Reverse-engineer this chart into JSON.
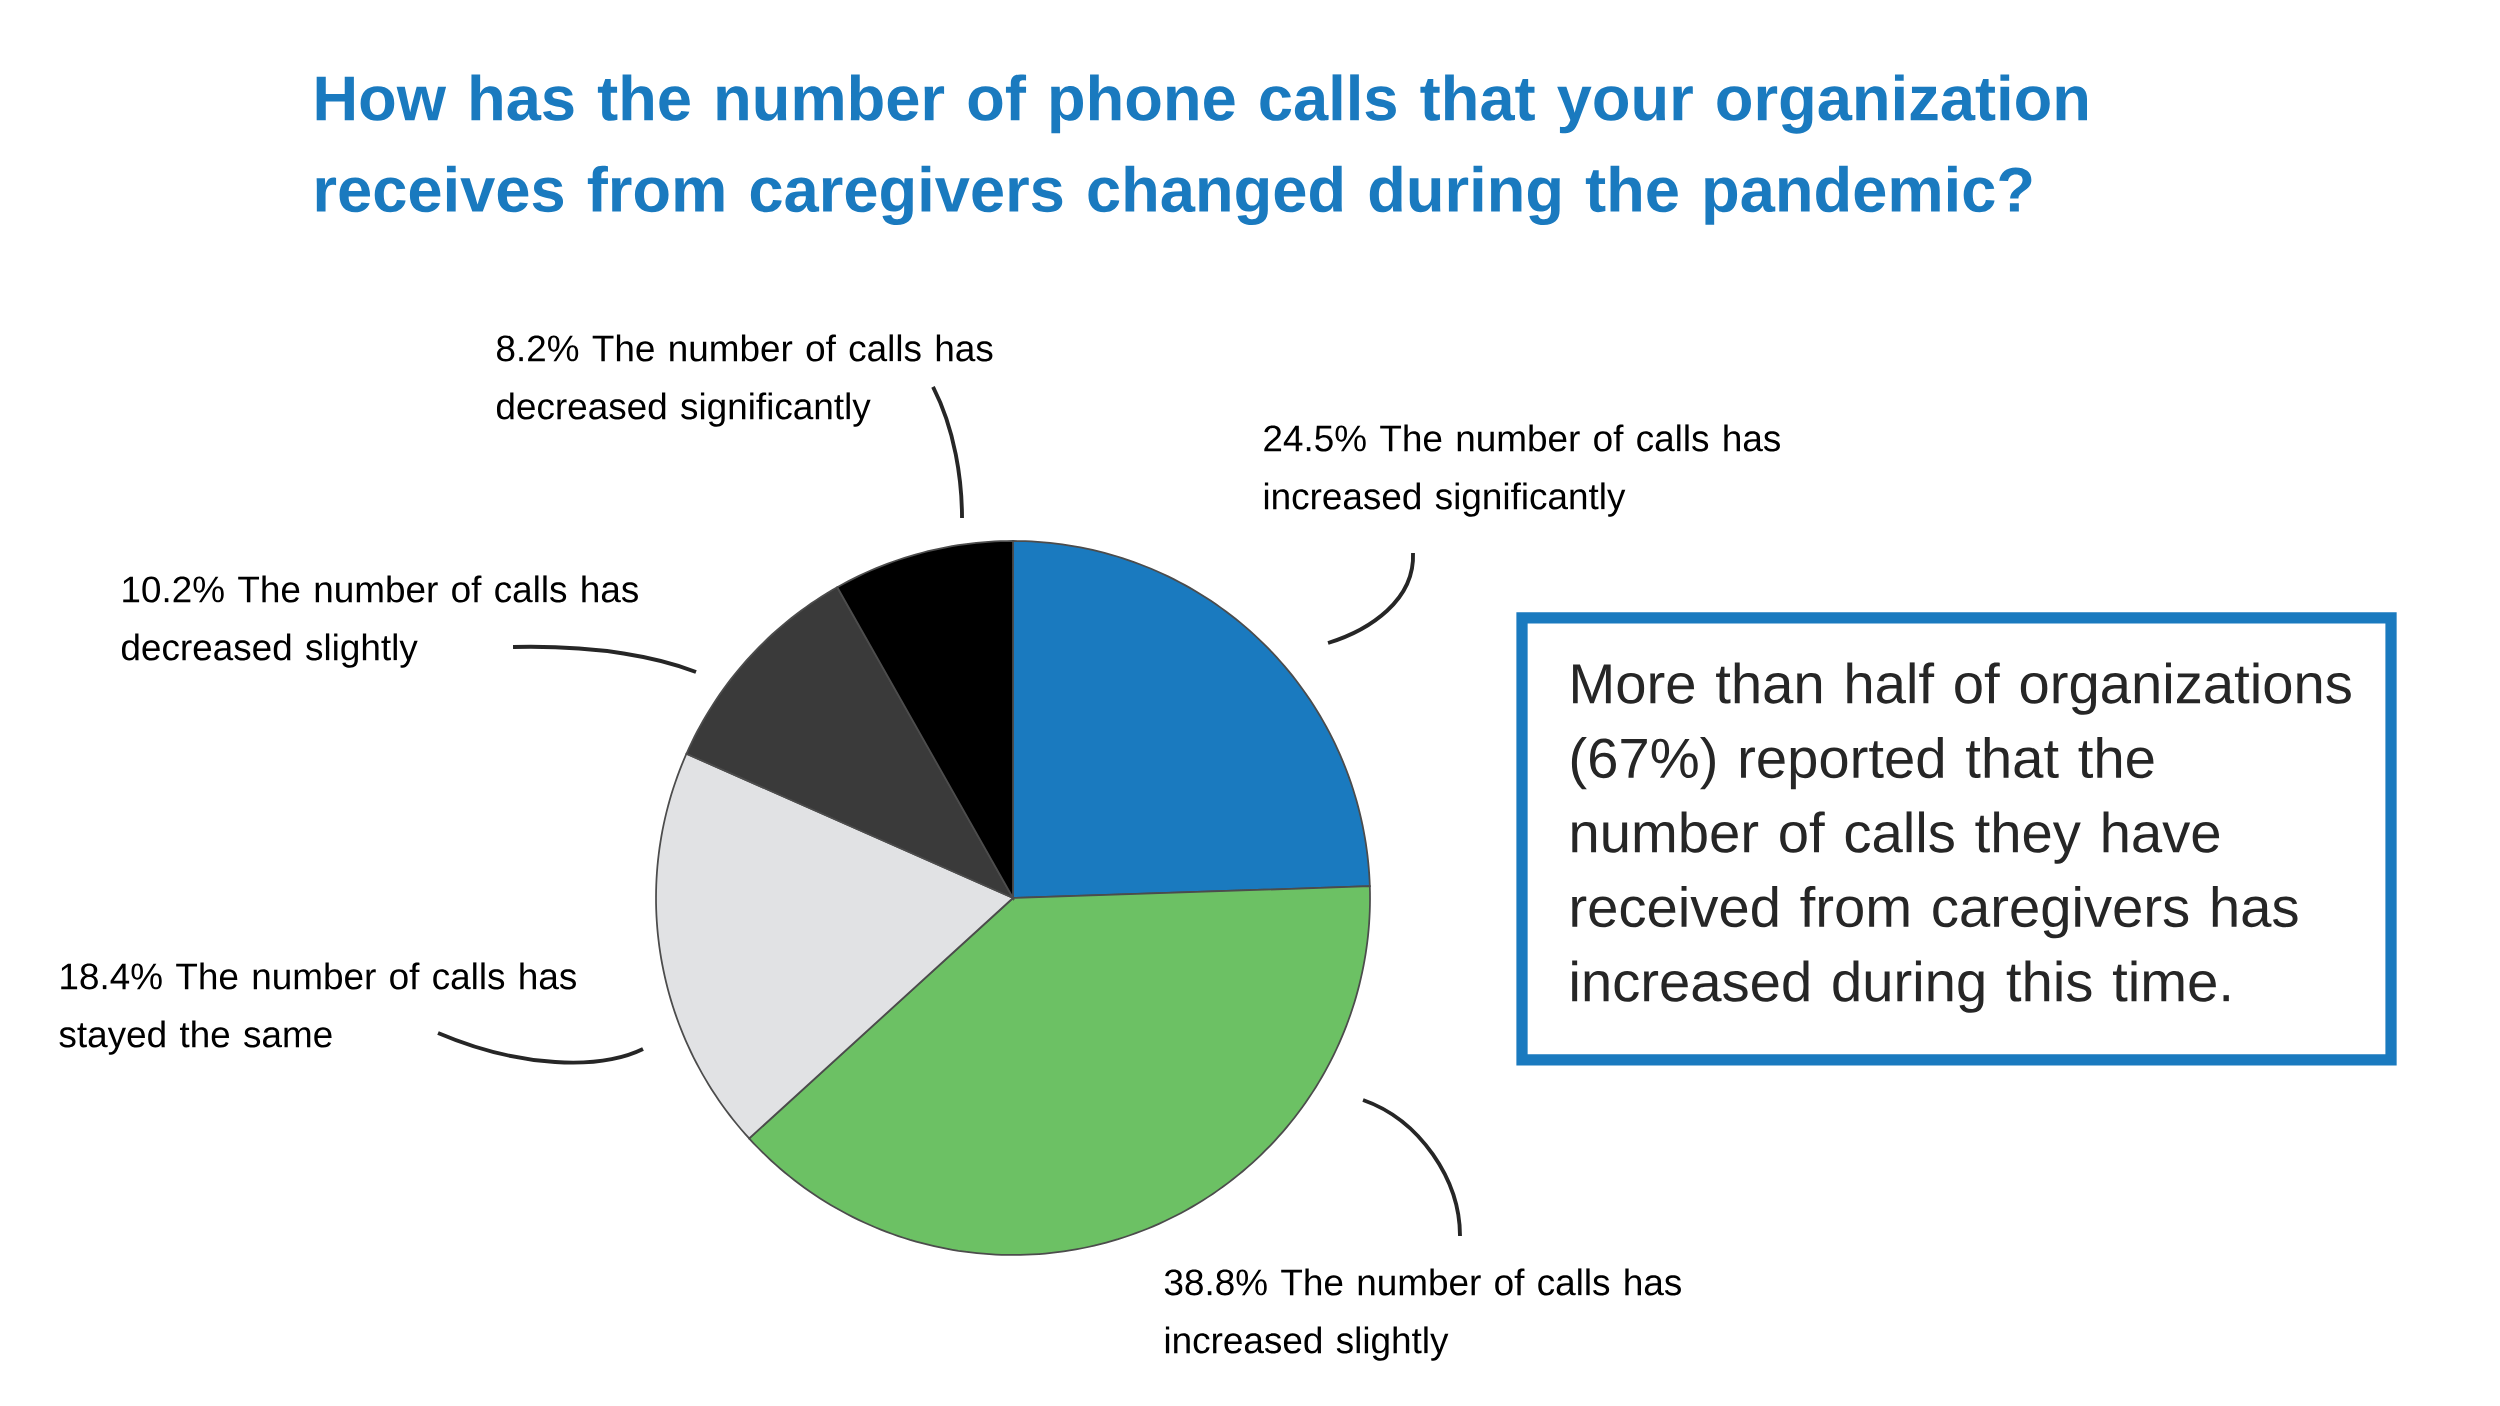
{
  "chart_data": {
    "type": "pie",
    "title": "How has the number of phone calls that your organization receives from caregivers changed during the pandemic?",
    "categories": [
      "The number of calls has increased significantly",
      "The number of calls has increased slightly",
      "The number of calls has stayed the same",
      "The number of calls has decreased slightly",
      "The number of calls has decreased significantly"
    ],
    "values": [
      24.5,
      38.8,
      18.4,
      10.2,
      8.2
    ],
    "value_labels": [
      "24.5%",
      "38.8%",
      "18.4%",
      "10.2%",
      "8.2%"
    ],
    "colors": [
      "#1a7abf",
      "#6cc164",
      "#e1e2e4",
      "#3a3a3a",
      "#000000"
    ],
    "annotations": [
      "More than half of organizations (67%) reported that the number of calls they have received from caregivers has increased during this time."
    ]
  }
}
